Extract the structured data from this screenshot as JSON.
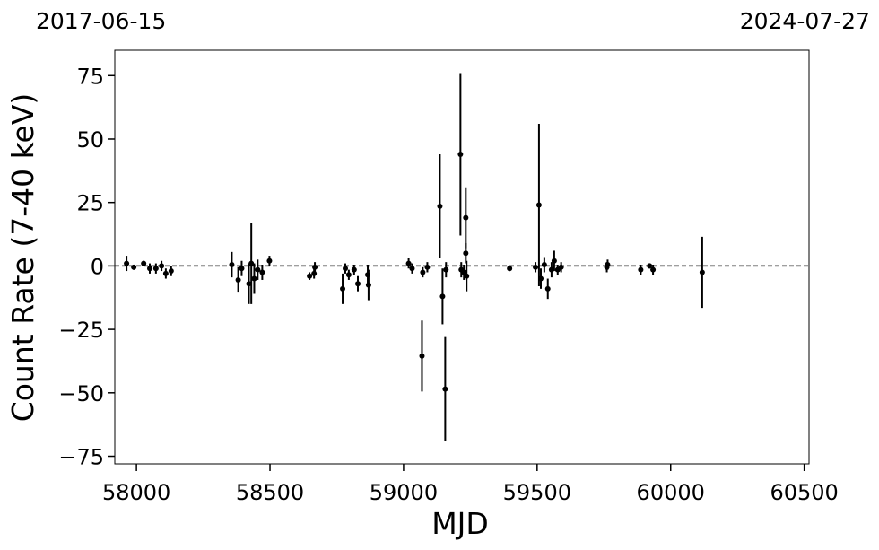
{
  "chart_data": {
    "type": "scatter",
    "top_labels": [
      "2017-06-15",
      "2024-07-27"
    ],
    "xlabel": "MJD",
    "ylabel": "Count Rate (7-40 keV)",
    "xlim": [
      57919,
      60518
    ],
    "ylim": [
      -78,
      85
    ],
    "xticks": [
      58000,
      58500,
      59000,
      59500,
      60000,
      60500
    ],
    "yticks": [
      {
        "value": -75,
        "label": "−75"
      },
      {
        "value": -50,
        "label": "−50"
      },
      {
        "value": -25,
        "label": "−25"
      },
      0,
      25,
      50,
      75
    ],
    "hline": 0,
    "series": [
      {
        "color": "#000000",
        "x": [
          57963,
          57990,
          58027,
          58050,
          58073,
          58094,
          58110,
          58130,
          58357,
          58381,
          58394,
          58421,
          58430,
          58441,
          58454,
          58471,
          58498,
          58648,
          58665,
          58668,
          58772,
          58782,
          58795,
          58815,
          58829,
          58866,
          58869,
          59019,
          59032,
          59069,
          59072,
          59089,
          59136,
          59146,
          59156,
          59159,
          59213,
          59216,
          59226,
          59233,
          59233,
          59236,
          59397,
          59494,
          59507,
          59514,
          59527,
          59540,
          59554,
          59564,
          59577,
          59590,
          59761,
          59764,
          59888,
          59921,
          59934,
          60118
        ],
        "values": [
          1,
          -0.5,
          1,
          -1,
          -1,
          0,
          -3,
          -2,
          0.5,
          -5.5,
          -1,
          -7,
          1,
          -5,
          -1.5,
          -2.5,
          2,
          -4,
          -3,
          -0.5,
          -9,
          -1,
          -3.5,
          -1.5,
          -7,
          -3.5,
          -7.5,
          1,
          -1,
          -35.5,
          -2.5,
          -0.5,
          23.5,
          -12,
          -48.5,
          -1.5,
          44,
          -1.5,
          -2.5,
          19,
          5,
          -4,
          -1,
          -0.5,
          24,
          -5,
          0.5,
          -9,
          -1.5,
          2,
          -1.5,
          -0.5,
          -0.5,
          0.5,
          -1.5,
          0,
          -1.5,
          -2.5
        ],
        "errors": [
          3,
          1,
          1,
          2,
          2,
          2,
          2,
          2,
          5,
          5,
          3,
          8,
          16,
          6,
          4,
          3,
          2,
          1.5,
          2,
          2,
          6,
          2,
          2,
          2,
          3,
          4,
          6,
          2,
          2,
          14,
          2,
          2,
          20.5,
          11,
          20.5,
          3,
          32,
          3,
          3,
          12,
          4,
          6,
          1,
          2,
          32,
          4,
          3,
          4,
          3,
          4,
          2,
          2,
          2,
          2,
          2,
          1,
          2,
          14
        ]
      }
    ]
  }
}
